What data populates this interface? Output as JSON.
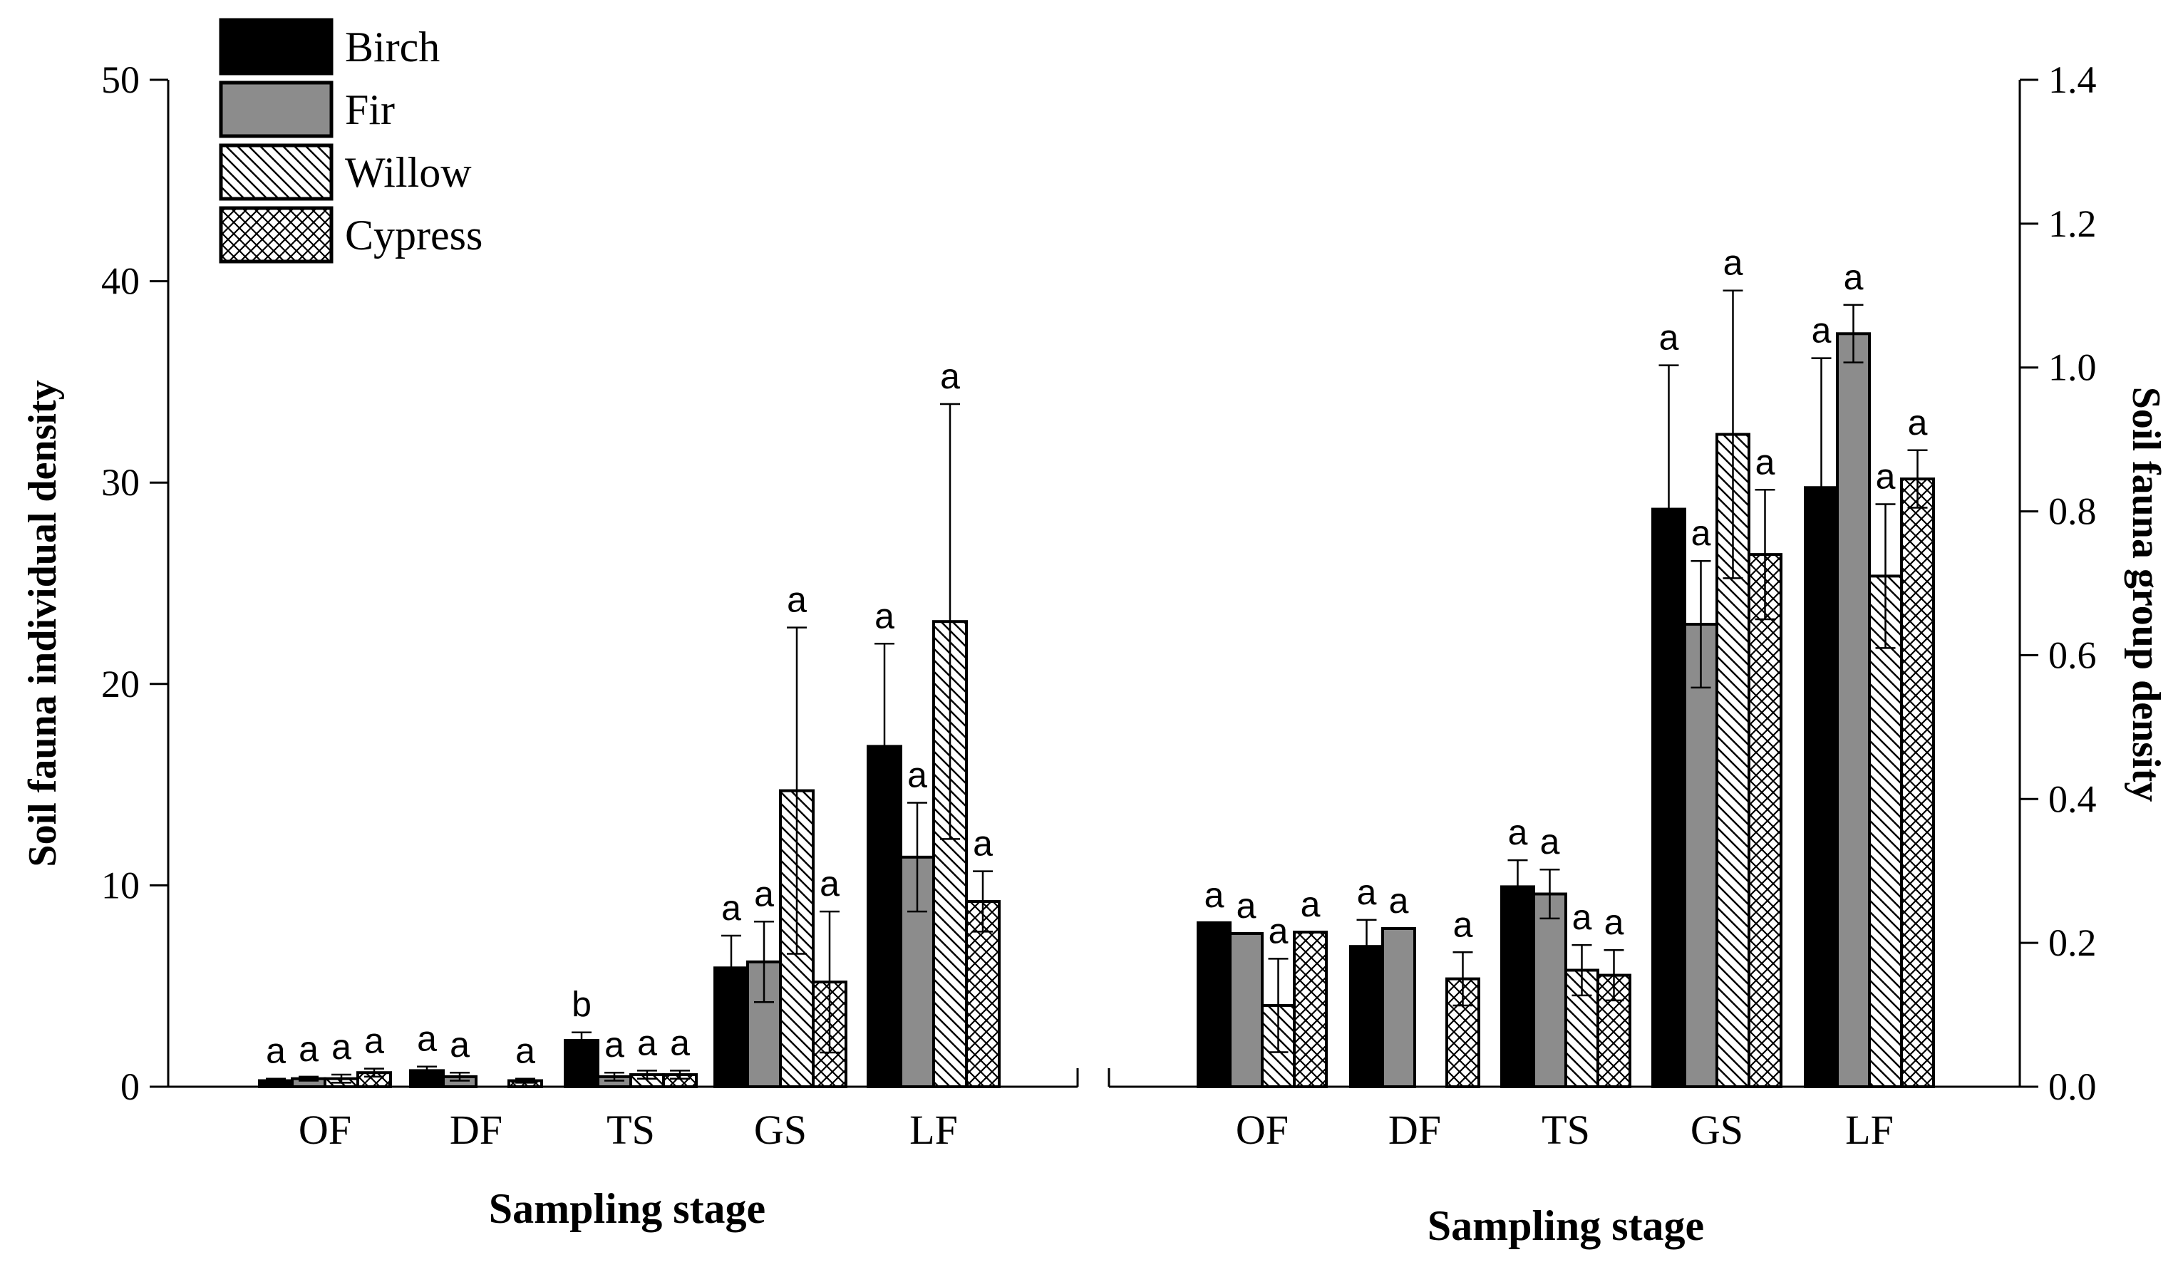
{
  "chart_data": [
    {
      "type": "bar",
      "xlabel": "Sampling stage",
      "ylabel": "Soil fauna individual density",
      "y_axis_side": "left",
      "ylim": [
        0,
        50
      ],
      "yticks": [
        "0",
        "10",
        "20",
        "30",
        "40",
        "50"
      ],
      "categories": [
        "OF",
        "DF",
        "TS",
        "GS",
        "LF"
      ],
      "series": [
        {
          "name": "Birch",
          "values": [
            0.3,
            0.8,
            2.3,
            5.9,
            16.9
          ],
          "errors": [
            0.1,
            0.2,
            0.4,
            1.6,
            5.1
          ],
          "labels": [
            "a",
            "a",
            "b",
            "a",
            "a"
          ]
        },
        {
          "name": "Fir",
          "values": [
            0.4,
            0.5,
            0.5,
            6.2,
            11.4
          ],
          "errors": [
            0.1,
            0.2,
            0.2,
            2.0,
            2.7
          ],
          "labels": [
            "a",
            "a",
            "a",
            "a",
            "a"
          ]
        },
        {
          "name": "Willow",
          "values": [
            0.4,
            0.0,
            0.6,
            14.7,
            23.1
          ],
          "errors": [
            0.2,
            0.0,
            0.2,
            8.1,
            10.8
          ],
          "labels": [
            "a",
            "",
            "a",
            "a",
            "a"
          ]
        },
        {
          "name": "Cypress",
          "values": [
            0.7,
            0.3,
            0.6,
            5.2,
            9.2
          ],
          "errors": [
            0.2,
            0.1,
            0.2,
            3.5,
            1.5
          ],
          "labels": [
            "a",
            "a",
            "a",
            "a",
            "a"
          ]
        }
      ],
      "legend": {
        "position": "top-left",
        "entries": [
          "Birch",
          "Fir",
          "Willow",
          "Cypress"
        ]
      }
    },
    {
      "type": "bar",
      "xlabel": "Sampling stage",
      "ylabel": "Soil fauna group density",
      "y_axis_side": "right",
      "ylim": [
        0,
        1.4
      ],
      "yticks": [
        "0.0",
        "0.2",
        "0.4",
        "0.6",
        "0.8",
        "1.0",
        "1.2",
        "1.4"
      ],
      "categories": [
        "OF",
        "DF",
        "TS",
        "GS",
        "LF"
      ],
      "series": [
        {
          "name": "Birch",
          "values": [
            0.228,
            0.195,
            0.278,
            0.803,
            0.833
          ],
          "errors": [
            0.0,
            0.037,
            0.037,
            0.2,
            0.18
          ],
          "labels": [
            "a",
            "a",
            "a",
            "a",
            "a"
          ]
        },
        {
          "name": "Fir",
          "values": [
            0.213,
            0.22,
            0.268,
            0.643,
            1.047
          ],
          "errors": [
            0.0,
            0.0,
            0.034,
            0.088,
            0.04
          ],
          "labels": [
            "a",
            "a",
            "a",
            "a",
            "a"
          ]
        },
        {
          "name": "Willow",
          "values": [
            0.113,
            0.0,
            0.162,
            0.907,
            0.71
          ],
          "errors": [
            0.065,
            0.0,
            0.035,
            0.2,
            0.1
          ],
          "labels": [
            "a",
            "",
            "a",
            "a",
            "a"
          ]
        },
        {
          "name": "Cypress",
          "values": [
            0.215,
            0.15,
            0.155,
            0.74,
            0.845
          ],
          "errors": [
            0.0,
            0.037,
            0.035,
            0.09,
            0.04
          ],
          "labels": [
            "a",
            "a",
            "a",
            "a",
            "a"
          ]
        }
      ]
    }
  ],
  "styles": {
    "Birch": {
      "fill": "#000000",
      "pattern": "solid"
    },
    "Fir": {
      "fill": "#8c8c8c",
      "pattern": "solid"
    },
    "Willow": {
      "fill": "#ffffff",
      "pattern": "diagonal-hatch"
    },
    "Cypress": {
      "fill": "#ffffff",
      "pattern": "cross-hatch"
    }
  }
}
